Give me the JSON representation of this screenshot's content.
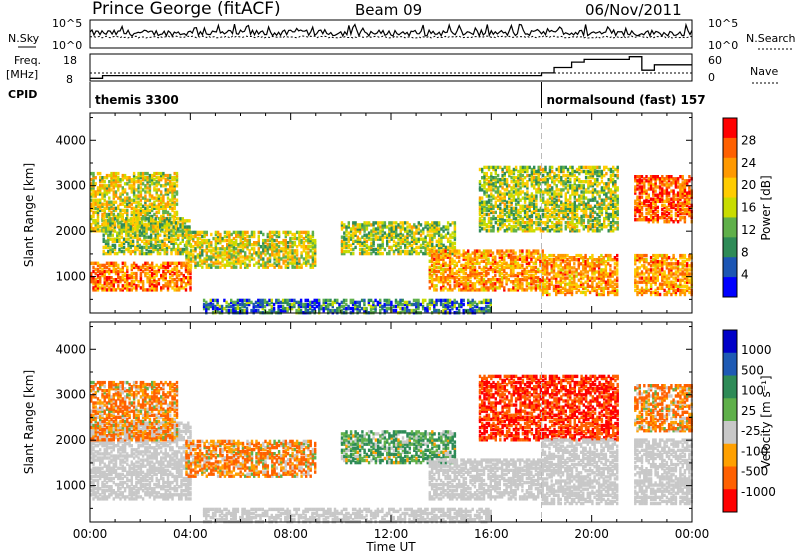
{
  "header": {
    "station": "Prince George (fitACF)",
    "beam": "Beam 09",
    "date": "06/Nov/2011"
  },
  "summary_panels": {
    "nsky_label": "N.Sky",
    "nsearch_label": "N.Search",
    "noise_ticks_left": [
      "10^5",
      "10^0"
    ],
    "noise_ticks_right": [
      "10^5",
      "10^0"
    ],
    "freq_label": "Freq.",
    "freq_unit": "[MHz]",
    "freq_ticks": [
      "18",
      "8"
    ],
    "nave_label": "Nave",
    "nave_ticks": [
      "60",
      "0"
    ],
    "cpid_label": "CPID",
    "cpid_segments": [
      {
        "label": "themis 3300",
        "start_hour": 0,
        "end_hour": 18
      },
      {
        "label": "normalsound (fast) 157",
        "start_hour": 18,
        "end_hour": 24
      }
    ],
    "freq_steps": [
      {
        "hour": 0,
        "mhz": 9
      },
      {
        "hour": 0.5,
        "mhz": 10
      },
      {
        "hour": 18,
        "mhz": 11
      },
      {
        "hour": 18.5,
        "mhz": 13
      },
      {
        "hour": 19.2,
        "mhz": 15
      },
      {
        "hour": 19.7,
        "mhz": 16
      },
      {
        "hour": 21.5,
        "mhz": 17
      },
      {
        "hour": 22,
        "mhz": 12
      },
      {
        "hour": 22.5,
        "mhz": 14
      }
    ]
  },
  "chart_data": [
    {
      "type": "heatmap",
      "quantity": "Power",
      "ylabel": "Slant Range [km]",
      "colorbar_label": "Power [dB]",
      "colorbar_ticks": [
        "28",
        "24",
        "20",
        "16",
        "12",
        "8",
        "4"
      ],
      "colorbar_colors": [
        "#ff0000",
        "#ff6000",
        "#ff9900",
        "#ffcc00",
        "#c8dc00",
        "#5fb04a",
        "#2e8b57",
        "#1c56b4",
        "#0000ff"
      ],
      "xlim": [
        0,
        24
      ],
      "ylim": [
        200,
        4600
      ],
      "yticks": [
        1000,
        2000,
        3000,
        4000
      ],
      "gaps_hours": [
        [
          21.0,
          21.6
        ]
      ],
      "echo_regions": [
        {
          "name": "morning near-range band",
          "t0": 0.0,
          "t1": 4.0,
          "r0": 700,
          "r1": 1300,
          "power_db": 24
        },
        {
          "name": "morning far band",
          "t0": 0.0,
          "t1": 3.5,
          "r0": 2000,
          "r1": 3300,
          "power_db": 16
        },
        {
          "name": "morning mid-range streak",
          "t0": 0.5,
          "t1": 4.0,
          "r0": 1500,
          "r1": 2300,
          "power_db": 14
        },
        {
          "name": "day band",
          "t0": 3.8,
          "t1": 9.0,
          "r0": 1200,
          "r1": 2000,
          "power_db": 16
        },
        {
          "name": "ground clutter strip",
          "t0": 4.5,
          "t1": 16.0,
          "r0": 200,
          "r1": 500,
          "power_db": 8
        },
        {
          "name": "scattered mid",
          "t0": 10.0,
          "t1": 14.5,
          "r0": 1500,
          "r1": 2200,
          "power_db": 14
        },
        {
          "name": "afternoon descending band",
          "t0": 13.5,
          "t1": 18.0,
          "r0": 700,
          "r1": 1600,
          "power_db": 22
        },
        {
          "name": "evening far echoes",
          "t0": 15.5,
          "t1": 21.0,
          "r0": 2000,
          "r1": 3400,
          "power_db": 14
        },
        {
          "name": "evening near band",
          "t0": 18.0,
          "t1": 24.0,
          "r0": 600,
          "r1": 1500,
          "power_db": 22
        },
        {
          "name": "late far band",
          "t0": 21.6,
          "t1": 24.0,
          "r0": 2200,
          "r1": 3200,
          "power_db": 26
        }
      ]
    },
    {
      "type": "heatmap",
      "quantity": "Velocity",
      "ylabel": "Slant Range [km]",
      "colorbar_label": "Velocity [m s⁻¹]",
      "colorbar_ticks": [
        "1000",
        "500",
        "100",
        "25",
        "-25",
        "-100",
        "-500",
        "-1000"
      ],
      "colorbar_colors": [
        "#0000c8",
        "#1e5ab4",
        "#2e8b57",
        "#5fb04a",
        "#c8c8c8",
        "#ffa000",
        "#ff6000",
        "#ff0000"
      ],
      "xlabel": "Time UT",
      "xticks": [
        "00:00",
        "04:00",
        "08:00",
        "12:00",
        "16:00",
        "20:00",
        "00:00"
      ],
      "xlim": [
        0,
        24
      ],
      "ylim": [
        200,
        4600
      ],
      "yticks": [
        1000,
        2000,
        3000,
        4000
      ],
      "gaps_hours": [
        [
          21.0,
          21.6
        ]
      ],
      "echo_regions": [
        {
          "name": "morning ground scatter",
          "t0": 0.0,
          "t1": 4.0,
          "r0": 700,
          "r1": 2400,
          "velocity": 0
        },
        {
          "name": "morning far band",
          "t0": 0.0,
          "t1": 3.5,
          "r0": 2000,
          "r1": 3300,
          "velocity": -100
        },
        {
          "name": "day band",
          "t0": 3.8,
          "t1": 9.0,
          "r0": 1200,
          "r1": 2000,
          "velocity": -100
        },
        {
          "name": "ground clutter strip",
          "t0": 4.5,
          "t1": 16.0,
          "r0": 200,
          "r1": 500,
          "velocity": 0
        },
        {
          "name": "scattered mid",
          "t0": 10.0,
          "t1": 14.5,
          "r0": 1500,
          "r1": 2200,
          "velocity": 100
        },
        {
          "name": "afternoon ground scatter",
          "t0": 13.5,
          "t1": 18.0,
          "r0": 700,
          "r1": 1600,
          "velocity": 0
        },
        {
          "name": "evening far echoes",
          "t0": 15.5,
          "t1": 21.0,
          "r0": 2000,
          "r1": 3400,
          "velocity": -500
        },
        {
          "name": "evening ground scatter",
          "t0": 18.0,
          "t1": 24.0,
          "r0": 600,
          "r1": 2000,
          "velocity": 0
        },
        {
          "name": "late far band",
          "t0": 21.6,
          "t1": 24.0,
          "r0": 2200,
          "r1": 3200,
          "velocity": -100
        }
      ]
    }
  ]
}
